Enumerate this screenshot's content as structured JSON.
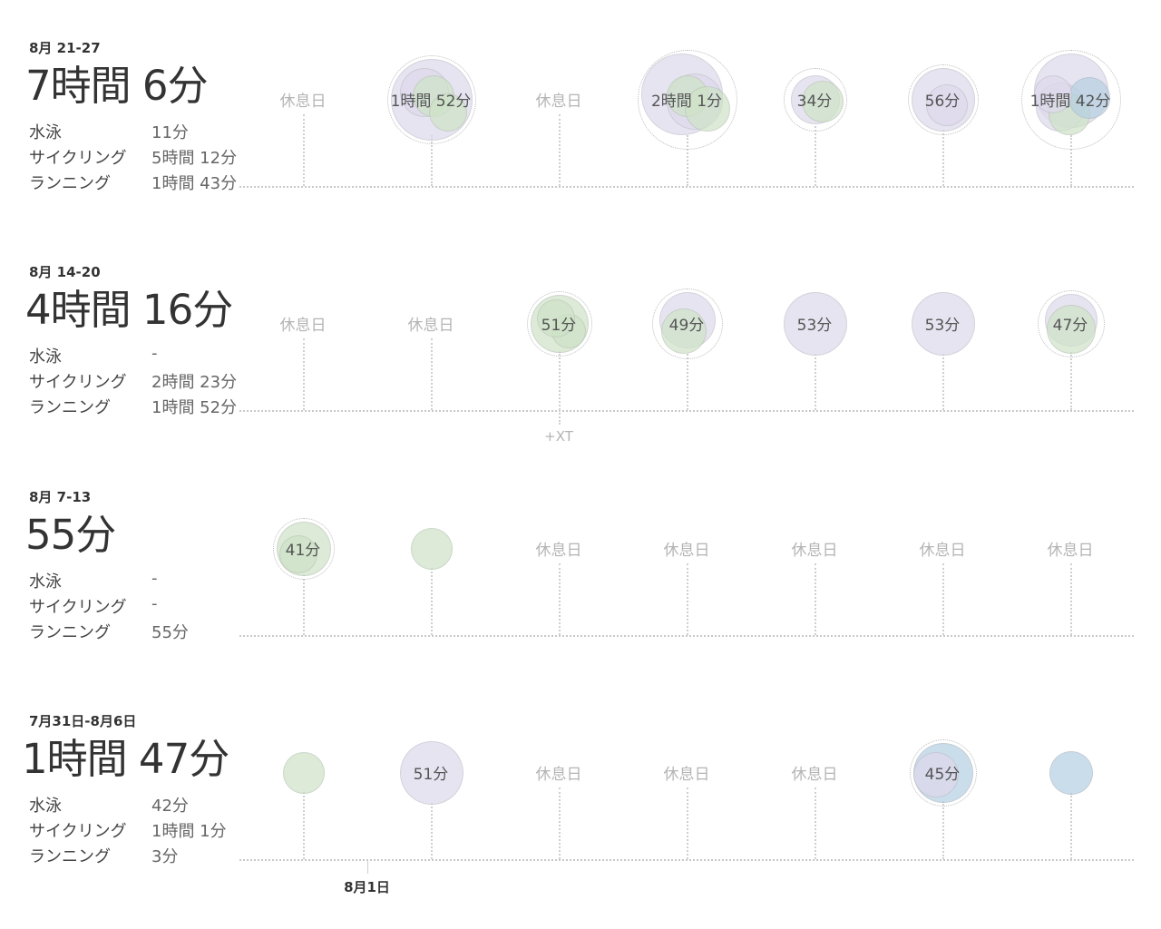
{
  "colors": {
    "swim": "#b7d0e2",
    "cycling": "#dedaec",
    "running": "#cfe3c8",
    "rest_text": "#b4b4b4",
    "baseline": "#c8c8c8"
  },
  "labels": {
    "swim": "水泳",
    "cycling": "サイクリング",
    "running": "ランニング",
    "rest": "休息日"
  },
  "weeks": [
    {
      "range": "8月 21-27",
      "total": "7時間 6分",
      "swim": "11分",
      "cycling": "5時間 12分",
      "running": "1時間 43分",
      "days": [
        {
          "rest": true
        },
        {
          "label": "1時間 52分",
          "ring": true,
          "blobs": [
            [
              "cycling",
              44,
              0,
              0
            ],
            [
              "cycling",
              26,
              -8,
              -8
            ],
            [
              "running",
              22,
              2,
              -4
            ],
            [
              "running",
              20,
              18,
              14
            ]
          ]
        },
        {
          "rest": true
        },
        {
          "label": "2時間 1分",
          "ring": true,
          "blobs": [
            [
              "cycling",
              44,
              -6,
              -6
            ],
            [
              "cycling",
              30,
              8,
              2
            ],
            [
              "running",
              22,
              0,
              -4
            ],
            [
              "running",
              24,
              22,
              10
            ]
          ]
        },
        {
          "label": "34分",
          "ring": true,
          "blobs": [
            [
              "cycling",
              26,
              0,
              0
            ],
            [
              "running",
              22,
              8,
              2
            ]
          ]
        },
        {
          "label": "56分",
          "ring": true,
          "blobs": [
            [
              "cycling",
              34,
              0,
              0
            ],
            [
              "cycling",
              22,
              4,
              6
            ]
          ]
        },
        {
          "label": "1時間 42分",
          "ring": true,
          "blobs": [
            [
              "cycling",
              40,
              0,
              -10
            ],
            [
              "cycling",
              26,
              -12,
              8
            ],
            [
              "running",
              22,
              -2,
              16
            ],
            [
              "swim",
              22,
              20,
              -2
            ],
            [
              "cycling",
              20,
              -20,
              -6
            ]
          ]
        }
      ]
    },
    {
      "range": "8月 14-20",
      "total": "4時間 16分",
      "swim": "-",
      "cycling": "2時間 23分",
      "running": "1時間 52分",
      "extra": {
        "day": 2,
        "text": "+XT"
      },
      "days": [
        {
          "rest": true
        },
        {
          "rest": true
        },
        {
          "label": "51分",
          "ring": true,
          "blobs": [
            [
              "running",
              31,
              0,
              0
            ],
            [
              "running",
              18,
              10,
              8
            ],
            [
              "running",
              20,
              -4,
              -6
            ]
          ]
        },
        {
          "label": "49分",
          "ring": true,
          "blobs": [
            [
              "cycling",
              30,
              0,
              -4
            ],
            [
              "running",
              24,
              -4,
              8
            ]
          ]
        },
        {
          "label": "53分",
          "ring": false,
          "blobs": [
            [
              "cycling",
              34,
              0,
              0
            ]
          ]
        },
        {
          "label": "53分",
          "ring": false,
          "blobs": [
            [
              "cycling",
              34,
              0,
              0
            ]
          ]
        },
        {
          "label": "47分",
          "ring": true,
          "blobs": [
            [
              "cycling",
              28,
              0,
              -4
            ],
            [
              "running",
              26,
              0,
              6
            ]
          ]
        }
      ]
    },
    {
      "range": "8月 7-13",
      "total": "55分",
      "swim": "-",
      "cycling": "-",
      "running": "55分",
      "days": [
        {
          "label": "41分",
          "ring": true,
          "blobs": [
            [
              "running",
              29,
              0,
              0
            ],
            [
              "running",
              20,
              -6,
              6
            ]
          ]
        },
        {
          "label": "",
          "ring": false,
          "blobs": [
            [
              "running",
              22,
              0,
              0
            ]
          ]
        },
        {
          "rest": true
        },
        {
          "rest": true
        },
        {
          "rest": true
        },
        {
          "rest": true
        },
        {
          "rest": true
        }
      ]
    },
    {
      "range": "7月31日-8月6日",
      "total": "1時間 47分",
      "swim": "42分",
      "cycling": "1時間 1分",
      "running": "3分",
      "month_marker": {
        "text": "8月1日",
        "day_offset": 0.5
      },
      "days": [
        {
          "label": "",
          "ring": false,
          "blobs": [
            [
              "running",
              22,
              0,
              0
            ]
          ]
        },
        {
          "label": "51分",
          "ring": false,
          "blobs": [
            [
              "cycling",
              34,
              0,
              0
            ]
          ]
        },
        {
          "rest": true
        },
        {
          "rest": true
        },
        {
          "rest": true
        },
        {
          "label": "45分",
          "ring": true,
          "blobs": [
            [
              "swim",
              32,
              0,
              0
            ],
            [
              "cycling",
              24,
              -8,
              2
            ]
          ]
        },
        {
          "label": "",
          "ring": false,
          "blobs": [
            [
              "swim",
              23,
              0,
              0
            ]
          ]
        }
      ]
    }
  ]
}
